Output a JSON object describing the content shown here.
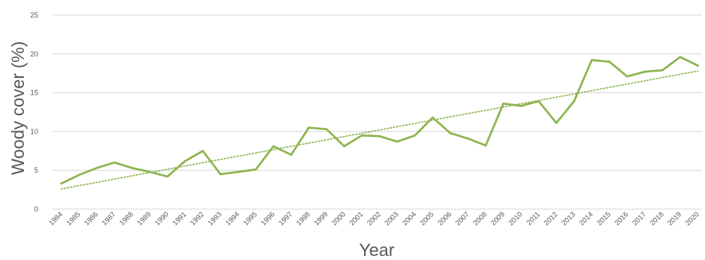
{
  "chart_data": {
    "type": "line",
    "xlabel": "Year",
    "ylabel": "Woody cover (%)",
    "ylim": [
      0,
      25
    ],
    "yticks": [
      0,
      5,
      10,
      15,
      20,
      25
    ],
    "grid": true,
    "x": [
      "1984",
      "1985",
      "1986",
      "1987",
      "1988",
      "1989",
      "1990",
      "1991",
      "1992",
      "1993",
      "1994",
      "1995",
      "1996",
      "1997",
      "1998",
      "1999",
      "2000",
      "2001",
      "2002",
      "2003",
      "2004",
      "2005",
      "2006",
      "2007",
      "2008",
      "2009",
      "2010",
      "2011",
      "2012",
      "2013",
      "2014",
      "2015",
      "2016",
      "2017",
      "2018",
      "2019",
      "2020"
    ],
    "series": [
      {
        "values": [
          3.3,
          4.4,
          5.3,
          6.0,
          5.3,
          4.8,
          4.2,
          6.2,
          7.5,
          4.5,
          4.8,
          5.1,
          8.1,
          7.0,
          10.5,
          10.3,
          8.1,
          9.5,
          9.4,
          8.7,
          9.5,
          11.8,
          9.8,
          9.1,
          8.2,
          13.6,
          13.3,
          13.9,
          11.1,
          13.9,
          19.2,
          19.0,
          17.1,
          17.7,
          17.9,
          19.6,
          18.5
        ],
        "color": "#8db550"
      }
    ],
    "trendline": {
      "type": "linear",
      "start": 2.6,
      "end": 17.8,
      "color": "#8db550",
      "style": "dotted"
    }
  }
}
